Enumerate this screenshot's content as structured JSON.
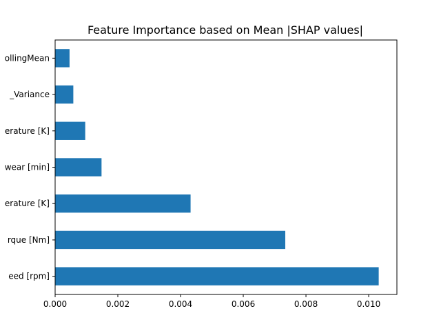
{
  "chart_data": {
    "type": "bar",
    "orientation": "horizontal",
    "title": "Feature Importance based on Mean |SHAP values|",
    "xlabel": "",
    "ylabel": "",
    "categories": [
      "eed [rpm]",
      "rque [Nm]",
      "erature [K]",
      "wear [min]",
      "erature [K]",
      "_Variance",
      "ollingMean"
    ],
    "values": [
      0.01032,
      0.00734,
      0.00432,
      0.00148,
      0.00096,
      0.00058,
      0.00046
    ],
    "xlim": [
      0,
      0.0109
    ],
    "xticks": [
      0.0,
      0.002,
      0.004,
      0.006,
      0.008,
      0.01
    ],
    "xtick_labels": [
      "0.000",
      "0.002",
      "0.004",
      "0.006",
      "0.008",
      "0.010"
    ],
    "bar_color": "#1f77b4",
    "grid": false,
    "legend": "none"
  }
}
